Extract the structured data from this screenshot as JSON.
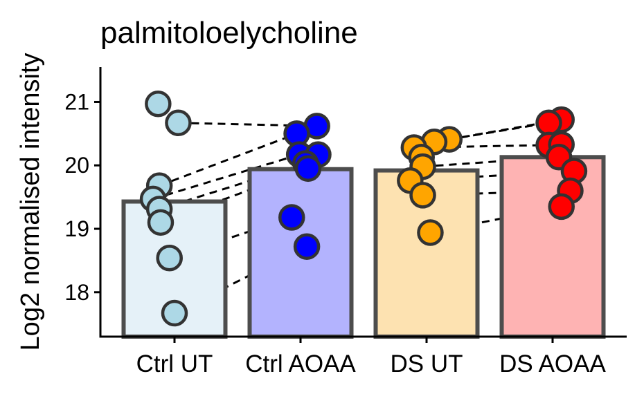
{
  "chart_data": {
    "type": "bar",
    "title": "palmitoloelycholine",
    "xlabel": "",
    "ylabel": "Log2 normalised intensity",
    "ylim": [
      17.3,
      21.55
    ],
    "yticks": [
      18,
      19,
      20,
      21
    ],
    "baseline": 17.3,
    "grid": false,
    "categories": [
      "Ctrl UT",
      "Ctrl AOAA",
      "DS UT",
      "DS AOAA"
    ],
    "values": [
      19.43,
      19.94,
      19.92,
      20.13
    ],
    "bar_fills": [
      "#e5f1f8",
      "#b3b3fe",
      "#fde2b1",
      "#feb3b3"
    ],
    "point_colors": [
      "#add8e6",
      "#0000ff",
      "#ffa500",
      "#ff0000"
    ],
    "bar_edge_color": "#4d4d4d",
    "point_edge_color": "#333333",
    "points": [
      [
        {
          "y": 20.97,
          "j": -0.13
        },
        {
          "y": 20.67,
          "j": 0.03
        },
        {
          "y": 19.68,
          "j": -0.12
        },
        {
          "y": 19.47,
          "j": -0.17
        },
        {
          "y": 19.31,
          "j": -0.12
        },
        {
          "y": 19.1,
          "j": -0.11
        },
        {
          "y": 18.54,
          "j": -0.04
        },
        {
          "y": 17.67,
          "j": 0.0
        }
      ],
      [
        {
          "y": 20.62,
          "j": 0.13
        },
        {
          "y": 20.5,
          "j": -0.03
        },
        {
          "y": 20.17,
          "j": -0.01
        },
        {
          "y": 20.17,
          "j": 0.14
        },
        {
          "y": 20.03,
          "j": 0.04
        },
        {
          "y": 19.95,
          "j": 0.06
        },
        {
          "y": 19.18,
          "j": -0.07
        },
        {
          "y": 18.72,
          "j": 0.05
        }
      ],
      [
        {
          "y": 20.41,
          "j": 0.18
        },
        {
          "y": 20.37,
          "j": 0.06
        },
        {
          "y": 20.28,
          "j": -0.1
        },
        {
          "y": 20.13,
          "j": -0.04
        },
        {
          "y": 19.98,
          "j": -0.03
        },
        {
          "y": 19.76,
          "j": -0.13
        },
        {
          "y": 19.53,
          "j": -0.03
        },
        {
          "y": 18.94,
          "j": 0.03
        }
      ],
      [
        {
          "y": 20.72,
          "j": 0.07
        },
        {
          "y": 20.67,
          "j": -0.03
        },
        {
          "y": 20.32,
          "j": -0.03
        },
        {
          "y": 20.33,
          "j": 0.07
        },
        {
          "y": 20.13,
          "j": 0.05
        },
        {
          "y": 19.91,
          "j": 0.17
        },
        {
          "y": 19.6,
          "j": 0.14
        },
        {
          "y": 19.35,
          "j": 0.07
        }
      ]
    ],
    "pairs": [
      {
        "from": 0,
        "a": [
          1,
          2,
          3,
          4,
          5,
          6,
          7
        ],
        "b": [
          0,
          1,
          2,
          4,
          5,
          6,
          7
        ]
      },
      {
        "from": 2,
        "a": [
          0,
          1,
          2,
          4,
          5,
          6,
          7
        ],
        "b": [
          0,
          1,
          2,
          4,
          5,
          6,
          7
        ]
      }
    ]
  }
}
